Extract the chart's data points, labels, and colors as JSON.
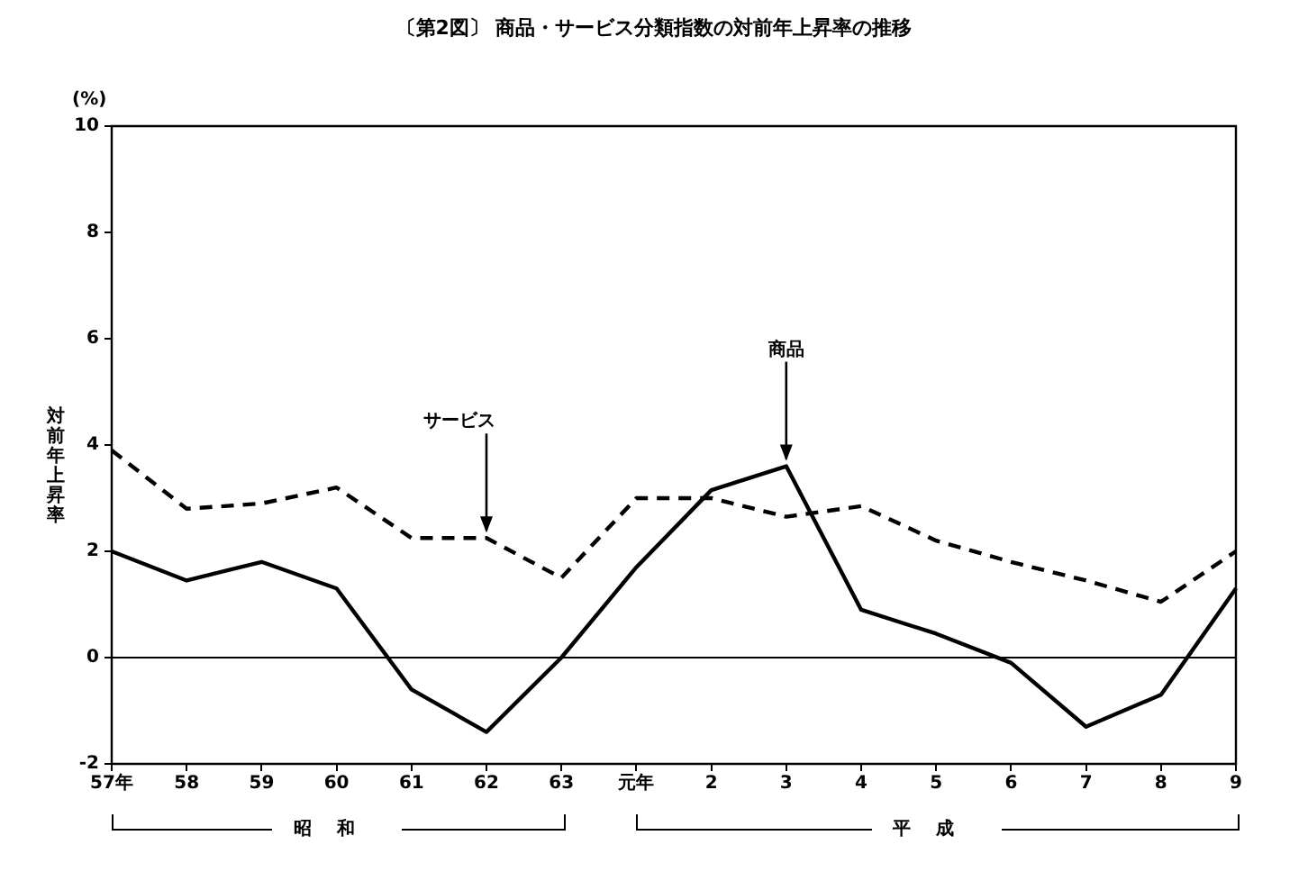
{
  "chart_data": {
    "type": "line",
    "title": "〔第2図〕 商品・サービス分類指数の対前年上昇率の推移",
    "ylabel": "対前年上昇率",
    "categories": [
      "57年",
      "58",
      "59",
      "60",
      "61",
      "62",
      "63",
      "元年",
      "2",
      "3",
      "4",
      "5",
      "6",
      "7",
      "8",
      "9"
    ],
    "series": [
      {
        "color": "#000000",
        "line_style": "solid",
        "values": [
          2.0,
          1.45,
          1.8,
          1.3,
          -0.6,
          -1.4,
          0.0,
          1.7,
          3.15,
          3.6,
          0.9,
          0.45,
          -0.1,
          -1.3,
          -0.7,
          1.3
        ]
      },
      {
        "color": "#000000",
        "line_style": "dashed",
        "values": [
          3.9,
          2.8,
          2.9,
          3.2,
          2.25,
          2.25,
          1.5,
          3.0,
          3.0,
          2.65,
          2.85,
          2.2,
          1.8,
          1.45,
          1.05,
          2.0
        ]
      }
    ],
    "ylim": [
      -2,
      10
    ],
    "yticks": [
      -2,
      0,
      2,
      4,
      6,
      8,
      10
    ],
    "grid": false,
    "legend": false,
    "marker": "none",
    "ref_lines": [
      {
        "axis": "y",
        "value": 0,
        "color": "#000000"
      }
    ],
    "annotations": [
      "(%)",
      {
        "text": "サービス",
        "x": "62",
        "y": 2.25
      },
      {
        "text": "商品",
        "x": "3",
        "y": 3.6
      },
      "昭和",
      "平成"
    ]
  }
}
